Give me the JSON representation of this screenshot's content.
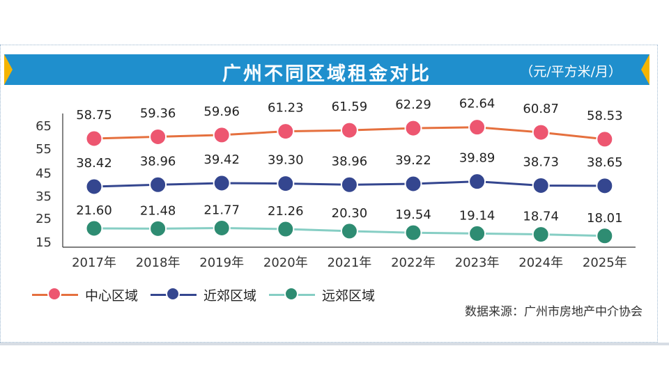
{
  "chart_data": {
    "type": "line",
    "title": "广州不同区域租金对比",
    "unit": "（元/平方米/月）",
    "categories": [
      "2017年",
      "2018年",
      "2019年",
      "2020年",
      "2021年",
      "2022年",
      "2023年",
      "2024年",
      "2025年"
    ],
    "y_ticks": [
      "15",
      "25",
      "35",
      "45",
      "55",
      "65"
    ],
    "y_range": [
      15,
      65
    ],
    "grid": false,
    "legend_position": "bottom-left",
    "series": [
      {
        "name": "中心区域",
        "color": "#ed5670",
        "line_color": "#e5703e",
        "values": [
          58.75,
          59.36,
          59.96,
          61.23,
          61.59,
          62.29,
          62.64,
          60.87,
          58.53
        ],
        "labels": [
          "58.75",
          "59.36",
          "59.96",
          "61.23",
          "61.59",
          "62.29",
          "62.64",
          "60.87",
          "58.53"
        ]
      },
      {
        "name": "近郊区域",
        "color": "#34468f",
        "line_color": "#34468f",
        "values": [
          38.42,
          38.96,
          39.42,
          39.3,
          38.96,
          39.22,
          39.89,
          38.73,
          38.65
        ],
        "labels": [
          "38.42",
          "38.96",
          "39.42",
          "39.30",
          "38.96",
          "39.22",
          "39.89",
          "38.73",
          "38.65"
        ]
      },
      {
        "name": "远郊区域",
        "color": "#2e8c72",
        "line_color": "#86cec4",
        "values": [
          21.6,
          21.48,
          21.77,
          21.26,
          20.3,
          19.54,
          19.14,
          18.74,
          18.01
        ],
        "labels": [
          "21.60",
          "21.48",
          "21.77",
          "21.26",
          "20.30",
          "19.54",
          "19.14",
          "18.74",
          "18.01"
        ]
      }
    ],
    "source": "数据来源：广州市房地产中介协会"
  }
}
